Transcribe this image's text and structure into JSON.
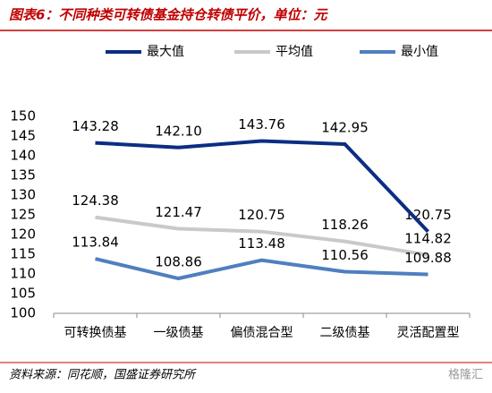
{
  "chart_data": {
    "type": "line",
    "title": "图表6：不同种类可转债基金持仓转债平价，单位：元",
    "source": "资料来源：同花顺，国盛证券研究所",
    "watermark": "格隆汇",
    "categories": [
      "可转换债基",
      "一级债基",
      "偏债混合型",
      "二级债基",
      "灵活配置型"
    ],
    "series": [
      {
        "name": "最大值",
        "color": "#0c2d83",
        "values": [
          143.28,
          142.1,
          143.76,
          142.95,
          120.75
        ],
        "value_labels": [
          "143.28",
          "142.10",
          "143.76",
          "142.95",
          "120.75"
        ]
      },
      {
        "name": "平均值",
        "color": "#c9c9c9",
        "values": [
          124.38,
          121.47,
          120.75,
          118.26,
          114.82
        ],
        "value_labels": [
          "124.38",
          "121.47",
          "120.75",
          "118.26",
          "114.82"
        ]
      },
      {
        "name": "最小值",
        "color": "#4f7fbf",
        "values": [
          113.84,
          108.86,
          113.48,
          110.56,
          109.88
        ],
        "value_labels": [
          "113.84",
          "108.86",
          "113.48",
          "110.56",
          "109.88"
        ]
      }
    ],
    "ylim": [
      100,
      150
    ],
    "yticks": [
      100,
      105,
      110,
      115,
      120,
      125,
      130,
      135,
      140,
      145,
      150
    ],
    "legend": "top"
  }
}
